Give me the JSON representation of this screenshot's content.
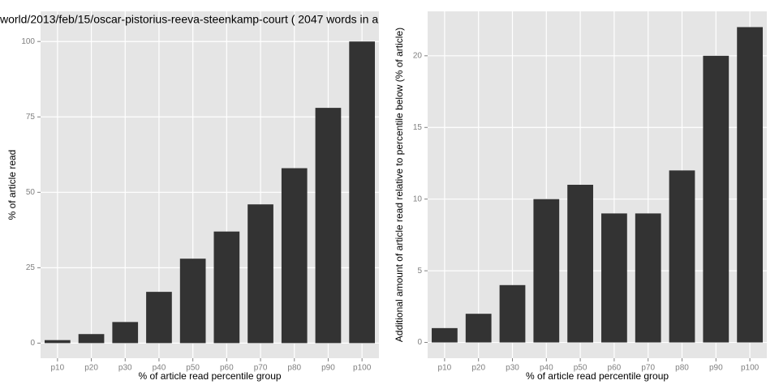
{
  "chart_data": [
    {
      "type": "bar",
      "title": "world/2013/feb/15/oscar-pistorius-reeva-steenkamp-court ( 2047 words in a",
      "x_label": "% of article read percentile group",
      "y_label": "% of article read",
      "categories": [
        "p10",
        "p20",
        "p30",
        "p40",
        "p50",
        "p60",
        "p70",
        "p80",
        "p90",
        "p100"
      ],
      "values": [
        1,
        3,
        7,
        17,
        28,
        37,
        46,
        58,
        78,
        100
      ],
      "color": "#333333",
      "ylim": [
        -5,
        110
      ],
      "yticks": [
        0,
        25,
        50,
        75,
        100
      ],
      "grid": true
    },
    {
      "type": "bar",
      "x_label": "% of article read percentile group",
      "y_label": "Additional amount of article read relative to percentile below (% of article)",
      "categories": [
        "p10",
        "p20",
        "p30",
        "p40",
        "p50",
        "p60",
        "p70",
        "p80",
        "p90",
        "p100"
      ],
      "values": [
        1,
        2,
        4,
        10,
        11,
        9,
        9,
        12,
        20,
        22
      ],
      "color": "#333333",
      "ylim": [
        -1.1,
        23.1
      ],
      "yticks": [
        0,
        5,
        10,
        15,
        20
      ],
      "grid": true
    }
  ]
}
